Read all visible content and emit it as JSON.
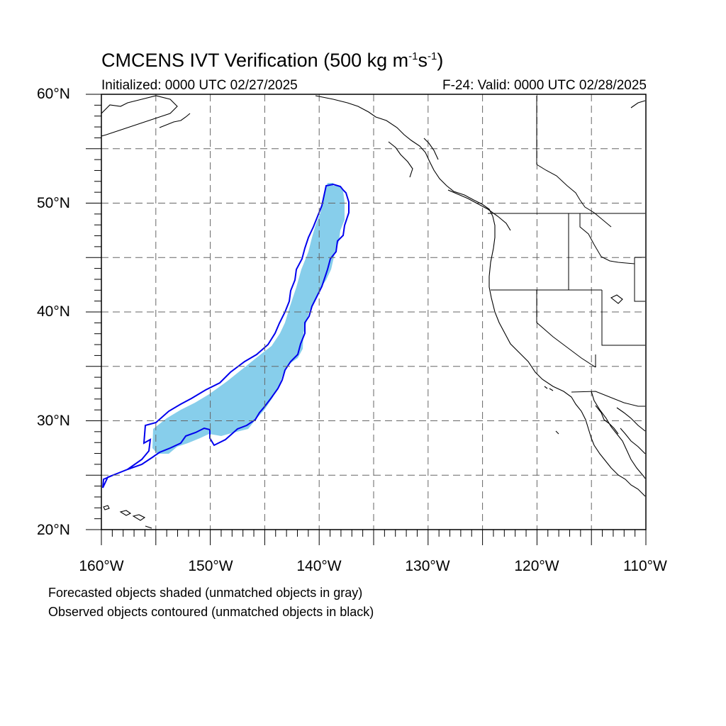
{
  "title": {
    "main": "CMCENS IVT Verification (500 kg m",
    "exp1": "-1",
    "mid": "s",
    "exp2": "-1",
    "end": ")"
  },
  "initialized": "Initialized: 0000 UTC 02/27/2025",
  "valid": "F-24: Valid: 0000 UTC 02/28/2025",
  "lat_labels": [
    "60°N",
    "50°N",
    "40°N",
    "30°N",
    "20°N"
  ],
  "lon_labels": [
    "160°W",
    "150°W",
    "140°W",
    "130°W",
    "120°W",
    "110°W"
  ],
  "notes": [
    "Forecasted objects shaded (unmatched objects in gray)",
    "Observed objects contoured (unmatched objects in black)"
  ],
  "colors": {
    "forecast_fill": "#87ceeb",
    "observed_contour": "#0000ee",
    "coastline": "#000000",
    "grid": "#666666"
  },
  "map": {
    "lon_range": [
      -160,
      -110
    ],
    "lat_range": [
      20,
      60
    ],
    "grid_step_deg": 5
  }
}
